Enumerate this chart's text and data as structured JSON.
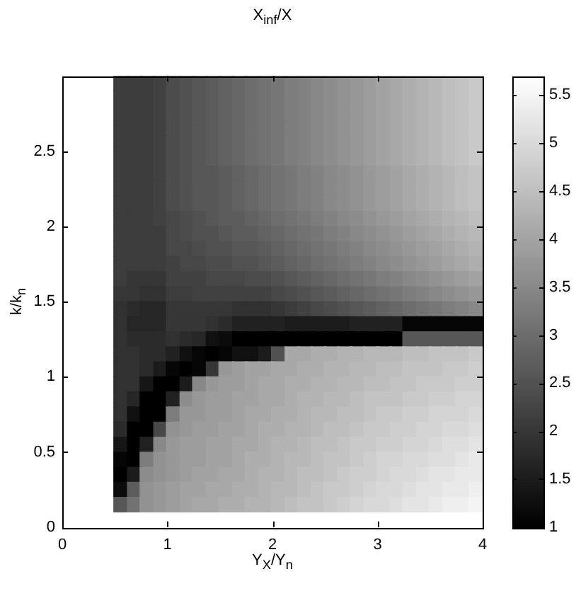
{
  "chart_data": {
    "type": "scatter",
    "title": "X$_{inf}$/X",
    "xlabel": "Y$_{X}$/Y$_{n}$",
    "ylabel": "k/k$_{n}$",
    "marker": "square",
    "xlim": [
      0,
      4
    ],
    "xticks": [
      0,
      1,
      2,
      3,
      4
    ],
    "ylim": [
      0,
      3
    ],
    "yticks": [
      0,
      0.5,
      1,
      1.5,
      2,
      2.5
    ],
    "clim": [
      1,
      5.7
    ],
    "cticks": [
      1,
      1.5,
      2,
      2.5,
      3,
      3.5,
      4,
      4.5,
      5,
      5.5
    ],
    "x": [
      0.56,
      0.69,
      0.81,
      0.94,
      1.06,
      1.19,
      1.31,
      1.44,
      1.56,
      1.69,
      1.81,
      1.94,
      2.06,
      2.19,
      2.31,
      2.44,
      2.56,
      2.69,
      2.81,
      2.94,
      3.06,
      3.19,
      3.31,
      3.44,
      3.56,
      3.69,
      3.81,
      3.94,
      0.56,
      0.69,
      0.81,
      0.94,
      1.06,
      1.19,
      1.31,
      1.44,
      1.56,
      1.69,
      1.81,
      1.94,
      2.06,
      2.19,
      2.31,
      2.44,
      2.56,
      2.69,
      2.81,
      2.94,
      3.06,
      3.19,
      3.31,
      3.44,
      3.56,
      3.69,
      3.81,
      3.94,
      0.56,
      0.69,
      0.81,
      0.94,
      1.06,
      1.19,
      1.31,
      1.44,
      1.56,
      1.69,
      1.81,
      1.94,
      2.06,
      2.19,
      2.31,
      2.44,
      2.56,
      2.69,
      2.81,
      2.94,
      3.06,
      3.19,
      3.31,
      3.44,
      3.56,
      3.69,
      3.81,
      3.94,
      0.56,
      0.69,
      0.81,
      0.94,
      1.06,
      1.19,
      1.31,
      1.44,
      1.56,
      1.69,
      1.81,
      1.94,
      2.06,
      2.19,
      2.31,
      2.44,
      2.56,
      2.69,
      2.81,
      2.94,
      3.06,
      3.19,
      3.31,
      3.44,
      3.56,
      3.69,
      3.81,
      3.94,
      0.56,
      0.69,
      0.81,
      0.94,
      1.06,
      1.19,
      1.31,
      1.44,
      1.56,
      1.69,
      1.81,
      1.94,
      2.06,
      2.19,
      2.31,
      2.44,
      2.56,
      2.69,
      2.81,
      2.94,
      3.06,
      3.19,
      3.31,
      3.44,
      3.56,
      3.69,
      3.81,
      3.94,
      0.56,
      0.69,
      0.81,
      0.94,
      1.06,
      1.19,
      1.31,
      1.44,
      1.56,
      1.69,
      1.81,
      1.94,
      2.06,
      2.19,
      2.31,
      2.44,
      2.56,
      2.69,
      2.81,
      2.94,
      3.06,
      3.19,
      3.31,
      3.44,
      3.56,
      3.69,
      3.81,
      3.94,
      0.56,
      0.69,
      0.81,
      0.94,
      1.06,
      1.19,
      1.31,
      1.44,
      1.56,
      1.69,
      1.81,
      1.94,
      2.06,
      2.19,
      2.31,
      2.44,
      2.56,
      2.69,
      2.81,
      2.94,
      3.06,
      3.19,
      3.31,
      3.44,
      3.56,
      3.69,
      3.81,
      3.94,
      0.56,
      0.69,
      0.81,
      0.94,
      1.06,
      1.19,
      1.31,
      1.44,
      1.56,
      1.69,
      1.81,
      1.94,
      2.06,
      2.19,
      2.31,
      2.44,
      2.56,
      2.69,
      2.81,
      2.94,
      3.06,
      3.19,
      3.31,
      3.44,
      3.56,
      3.69,
      3.81,
      3.94,
      0.56,
      0.69,
      0.81,
      0.94,
      1.06,
      1.19,
      1.31,
      1.44,
      1.56,
      1.69,
      1.81,
      1.94,
      2.06,
      2.19,
      2.31,
      2.44,
      2.56,
      2.69,
      2.81,
      2.94,
      3.06,
      3.19,
      3.31,
      3.44,
      3.56,
      3.69,
      3.81,
      3.94,
      0.56,
      0.69,
      0.81,
      0.94,
      1.06,
      1.19,
      1.31,
      1.44,
      1.56,
      1.69,
      1.81,
      1.94,
      2.06,
      2.19,
      2.31,
      2.44,
      2.56,
      2.69,
      2.81,
      2.94,
      3.06,
      3.19,
      3.31,
      3.44,
      3.56,
      3.69,
      3.81,
      3.94,
      0.56,
      0.69,
      0.81,
      0.94,
      1.06,
      1.19,
      1.31,
      1.44,
      1.56,
      1.69,
      1.81,
      1.94,
      2.06,
      2.19,
      2.31,
      2.44,
      2.56,
      2.69,
      2.81,
      2.94,
      3.06,
      3.19,
      3.31,
      3.44,
      3.56,
      3.69,
      3.81,
      3.94,
      0.56,
      0.69,
      0.81,
      0.94,
      1.06,
      1.19,
      1.31,
      1.44,
      1.56,
      1.69,
      1.81,
      1.94,
      2.06,
      2.19,
      2.31,
      2.44,
      2.56,
      2.69,
      2.81,
      2.94,
      3.06,
      3.19,
      3.31,
      3.44,
      3.56,
      3.69,
      3.81,
      3.94,
      0.56,
      0.69,
      0.81,
      0.94,
      1.06,
      1.19,
      1.31,
      1.44,
      1.56,
      1.69,
      1.81,
      1.94,
      2.06,
      2.19,
      2.31,
      2.44,
      2.56,
      2.69,
      2.81,
      2.94,
      3.06,
      3.19,
      3.31,
      3.44,
      3.56,
      3.69,
      3.81,
      3.94,
      0.56,
      0.69,
      0.81,
      0.94,
      1.06,
      1.19,
      1.31,
      1.44,
      1.56,
      1.69,
      1.81,
      1.94,
      2.06,
      2.19,
      2.31,
      2.44,
      2.56,
      2.69,
      2.81,
      2.94,
      3.06,
      3.19,
      3.31,
      3.44,
      3.56,
      3.69,
      3.81,
      3.94,
      0.56,
      0.69,
      0.81,
      0.94,
      1.06,
      1.19,
      1.31,
      1.44,
      1.56,
      1.69,
      1.81,
      1.94,
      2.06,
      2.19,
      2.31,
      2.44,
      2.56,
      2.69,
      2.81,
      2.94,
      3.06,
      3.19,
      3.31,
      3.44,
      3.56,
      3.69,
      3.81,
      3.94,
      0.56,
      0.69,
      0.81,
      0.94,
      1.06,
      1.19,
      1.31,
      1.44,
      1.56,
      1.69,
      1.81,
      1.94,
      2.06,
      2.19,
      2.31,
      2.44,
      2.56,
      2.69,
      2.81,
      2.94,
      3.06,
      3.19,
      3.31,
      3.44,
      3.56,
      3.69,
      3.81,
      3.94,
      0.56,
      0.69,
      0.81,
      0.94,
      1.06,
      1.19,
      1.31,
      1.44,
      1.56,
      1.69,
      1.81,
      1.94,
      2.06,
      2.19,
      2.31,
      2.44,
      2.56,
      2.69,
      2.81,
      2.94,
      3.06,
      3.19,
      3.31,
      3.44,
      3.56,
      3.69,
      3.81,
      3.94,
      0.56,
      0.69,
      0.81,
      0.94,
      1.06,
      1.19,
      1.31,
      1.44,
      1.56,
      1.69,
      1.81,
      1.94,
      2.06,
      2.19,
      2.31,
      2.44,
      2.56,
      2.69,
      2.81,
      2.94,
      3.06,
      3.19,
      3.31,
      3.44,
      3.56,
      3.69,
      3.81,
      3.94,
      0.56,
      0.69,
      0.81,
      0.94,
      1.06,
      1.19,
      1.31,
      1.44,
      1.56,
      1.69,
      1.81,
      1.94,
      2.06,
      2.19,
      2.31,
      2.44,
      2.56,
      2.69,
      2.81,
      2.94,
      3.06,
      3.19,
      3.31,
      3.44,
      3.56,
      3.69,
      3.81,
      3.94,
      0.56,
      0.69,
      0.81,
      0.94,
      1.06,
      1.19,
      1.31,
      1.44,
      1.56,
      1.69,
      1.81,
      1.94,
      2.06,
      2.19,
      2.31,
      2.44,
      2.56,
      2.69,
      2.81,
      2.94,
      3.06,
      3.19,
      3.31,
      3.44,
      3.56,
      3.69,
      3.81,
      3.94,
      0.56,
      0.69,
      0.81,
      0.94,
      1.06,
      1.19,
      1.31,
      1.44,
      1.56,
      1.69,
      1.81,
      1.94,
      2.06,
      2.19,
      2.31,
      2.44,
      2.56,
      2.69,
      2.81,
      2.94,
      3.06,
      3.19,
      3.31,
      3.44,
      3.56,
      3.69,
      3.81,
      3.94,
      0.56,
      0.69,
      0.81,
      0.94,
      1.06,
      1.19,
      1.31,
      1.44,
      1.56,
      1.69,
      1.81,
      1.94,
      2.06,
      2.19,
      2.31,
      2.44,
      2.56,
      2.69,
      2.81,
      2.94,
      3.06,
      3.19,
      3.31,
      3.44,
      3.56,
      3.69,
      3.81,
      3.94,
      0.56,
      0.69,
      0.81,
      0.94,
      1.06,
      1.19,
      1.31,
      1.44,
      1.56,
      1.69,
      1.81,
      1.94,
      2.06,
      2.19,
      2.31,
      2.44,
      2.56,
      2.69,
      2.81,
      2.94,
      3.06,
      3.19,
      3.31,
      3.44,
      3.56,
      3.69,
      3.81,
      3.94,
      0.56,
      0.69,
      0.81,
      0.94,
      1.06,
      1.19,
      1.31,
      1.44,
      1.56,
      1.69,
      1.81,
      1.94,
      2.06,
      2.19,
      2.31,
      2.44,
      2.56,
      2.69,
      2.81,
      2.94,
      3.06,
      3.19,
      3.31,
      3.44,
      3.56,
      3.69,
      3.81,
      3.94,
      0.56,
      0.69,
      0.81,
      0.94,
      1.06,
      1.19,
      1.31,
      1.44,
      1.56,
      1.69,
      1.81,
      1.94,
      2.06,
      2.19,
      2.31,
      2.44,
      2.56,
      2.69,
      2.81,
      2.94,
      3.06,
      3.19,
      3.31,
      3.44,
      3.56,
      3.69,
      3.81,
      3.94,
      0.56,
      0.69,
      0.81,
      0.94,
      1.06,
      1.19,
      1.31,
      1.44,
      1.56,
      1.69,
      1.81,
      1.94,
      2.06,
      2.19,
      2.31,
      2.44,
      2.56,
      2.69,
      2.81,
      2.94,
      3.06,
      3.19,
      3.31,
      3.44,
      3.56,
      3.69,
      3.81,
      3.94,
      0.56,
      0.69,
      0.81,
      0.94,
      1.06,
      1.19,
      1.31,
      1.44,
      1.56,
      1.69,
      1.81,
      1.94,
      2.06,
      2.19,
      2.31,
      2.44,
      2.56,
      2.69,
      2.81,
      2.94,
      3.06,
      3.19,
      3.31,
      3.44,
      3.56,
      3.69,
      3.81,
      3.94,
      0.56,
      0.69,
      0.81,
      0.94,
      1.06,
      1.19,
      1.31,
      1.44,
      1.56,
      1.69,
      1.81,
      1.94,
      2.06,
      2.19,
      2.31,
      2.44,
      2.56,
      2.69,
      2.81,
      2.94,
      3.06,
      3.19,
      3.31,
      3.44,
      3.56,
      3.69,
      3.81,
      3.94,
      0.56,
      0.69,
      0.81,
      0.94,
      1.06,
      1.19,
      1.31,
      1.44,
      1.56,
      1.69,
      1.81,
      1.94,
      2.06,
      2.19,
      2.31,
      2.44,
      2.56,
      2.69,
      2.81,
      2.94,
      3.06,
      3.19,
      3.31,
      3.44,
      3.56,
      3.69,
      3.81,
      3.94
    ],
    "values": [
      2.95,
      2.95,
      2.95,
      2.95,
      2.95,
      2.95,
      2.95,
      2.95,
      2.95,
      2.95,
      2.95,
      2.95,
      2.95,
      2.95,
      2.95,
      2.95,
      2.95,
      2.95,
      2.95,
      2.95,
      2.95,
      2.95,
      2.95,
      2.95,
      2.95,
      2.95,
      2.95,
      2.95,
      2.85,
      2.85,
      2.85,
      2.85,
      2.85,
      2.85,
      2.85,
      2.85,
      2.85,
      2.85,
      2.85,
      2.85,
      2.85,
      2.85,
      2.85,
      2.85,
      2.85,
      2.85,
      2.85,
      2.85,
      2.85,
      2.85,
      2.85,
      2.85,
      2.85,
      2.85,
      2.85,
      2.85,
      2.75,
      2.75,
      2.75,
      2.75,
      2.75,
      2.75,
      2.75,
      2.75,
      2.75,
      2.75,
      2.75,
      2.75,
      2.75,
      2.75,
      2.75,
      2.75,
      2.75,
      2.75,
      2.75,
      2.75,
      2.75,
      2.75,
      2.75,
      2.75,
      2.75,
      2.75,
      2.75,
      2.75,
      2.65,
      2.65,
      2.65,
      2.65,
      2.65,
      2.65,
      2.65,
      2.65,
      2.65,
      2.65,
      2.65,
      2.65,
      2.65,
      2.65,
      2.65,
      2.65,
      2.65,
      2.65,
      2.65,
      2.65,
      2.65,
      2.65,
      2.65,
      2.65,
      2.65,
      2.65,
      2.65,
      2.65,
      2.55,
      2.55,
      2.55,
      2.55,
      2.55,
      2.55,
      2.55,
      2.55,
      2.55,
      2.55,
      2.55,
      2.55,
      2.55,
      2.55,
      2.55,
      2.55,
      2.55,
      2.55,
      2.55,
      2.55,
      2.55,
      2.55,
      2.55,
      2.55,
      2.55,
      2.55,
      2.55,
      2.55,
      2.45,
      2.45,
      2.45,
      2.45,
      2.45,
      2.45,
      2.45,
      2.45,
      2.45,
      2.45,
      2.45,
      2.45,
      2.45,
      2.45,
      2.45,
      2.45,
      2.45,
      2.45,
      2.45,
      2.45,
      2.45,
      2.45,
      2.45,
      2.45,
      2.45,
      2.45,
      2.45,
      2.45,
      2.35,
      2.35,
      2.35,
      2.35,
      2.35,
      2.35,
      2.35,
      2.35,
      2.35,
      2.35,
      2.35,
      2.35,
      2.35,
      2.35,
      2.35,
      2.35,
      2.35,
      2.35,
      2.35,
      2.35,
      2.35,
      2.35,
      2.35,
      2.35,
      2.35,
      2.35,
      2.35,
      2.35,
      2.25,
      2.25,
      2.25,
      2.25,
      2.25,
      2.25,
      2.25,
      2.25,
      2.25,
      2.25,
      2.25,
      2.25,
      2.25,
      2.25,
      2.25,
      2.25,
      2.25,
      2.25,
      2.25,
      2.25,
      2.25,
      2.25,
      2.25,
      2.25,
      2.25,
      2.25,
      2.25,
      2.25,
      2.15,
      2.15,
      2.15,
      2.15,
      2.15,
      2.15,
      2.15,
      2.15,
      2.15,
      2.15,
      2.15,
      2.15,
      2.15,
      2.15,
      2.15,
      2.15,
      2.15,
      2.15,
      2.15,
      2.15,
      2.15,
      2.15,
      2.15,
      2.15,
      2.15,
      2.15,
      2.15,
      2.15,
      2.05,
      2.05,
      2.05,
      2.05,
      2.05,
      2.05,
      2.05,
      2.05,
      2.05,
      2.05,
      2.05,
      2.05,
      2.05,
      2.05,
      2.05,
      2.05,
      2.05,
      2.05,
      2.05,
      2.05,
      2.05,
      2.05,
      2.05,
      2.05,
      2.05,
      2.05,
      2.05,
      2.05,
      1.95,
      1.95,
      1.95,
      1.95,
      1.95,
      1.95,
      1.95,
      1.95,
      1.95,
      1.95,
      1.95,
      1.95,
      1.95,
      1.95,
      1.95,
      1.95,
      1.95,
      1.95,
      1.95,
      1.95,
      1.95,
      1.95,
      1.95,
      1.95,
      1.95,
      1.95,
      1.95,
      1.95,
      1.85,
      1.85,
      1.85,
      1.85,
      1.85,
      1.85,
      1.85,
      1.85,
      1.85,
      1.85,
      1.85,
      1.85,
      1.85,
      1.85,
      1.85,
      1.85,
      1.85,
      1.85,
      1.85,
      1.85,
      1.85,
      1.85,
      1.85,
      1.85,
      1.85,
      1.85,
      1.85,
      1.85,
      1.75,
      1.75,
      1.75,
      1.75,
      1.75,
      1.75,
      1.75,
      1.75,
      1.75,
      1.75,
      1.75,
      1.75,
      1.75,
      1.75,
      1.75,
      1.75,
      1.75,
      1.75,
      1.75,
      1.75,
      1.75,
      1.75,
      1.75,
      1.75,
      1.75,
      1.75,
      1.75,
      1.75,
      1.65,
      1.65,
      1.65,
      1.65,
      1.65,
      1.65,
      1.65,
      1.65,
      1.65,
      1.65,
      1.65,
      1.65,
      1.65,
      1.65,
      1.65,
      1.65,
      1.65,
      1.65,
      1.65,
      1.65,
      1.65,
      1.65,
      1.65,
      1.65,
      1.65,
      1.65,
      1.65,
      1.65,
      1.55,
      1.55,
      1.55,
      1.55,
      1.55,
      1.55,
      1.55,
      1.55,
      1.55,
      1.55,
      1.55,
      1.55,
      1.55,
      1.55,
      1.55,
      1.55,
      1.55,
      1.55,
      1.55,
      1.55,
      1.55,
      1.55,
      1.55,
      1.55,
      1.55,
      1.55,
      1.55,
      1.55,
      1.45,
      1.45,
      1.45,
      1.45,
      1.45,
      1.45,
      1.45,
      1.45,
      1.45,
      1.45,
      1.45,
      1.45,
      1.45,
      1.45,
      1.45,
      1.45,
      1.45,
      1.45,
      1.45,
      1.45,
      1.45,
      1.45,
      1.45,
      1.45,
      1.45,
      1.45,
      1.45,
      1.45,
      1.35,
      1.35,
      1.35,
      1.35,
      1.35,
      1.35,
      1.35,
      1.35,
      1.35,
      1.35,
      1.35,
      1.35,
      1.35,
      1.35,
      1.35,
      1.35,
      1.35,
      1.35,
      1.35,
      1.35,
      1.35,
      1.35,
      1.35,
      1.35,
      1.35,
      1.35,
      1.35,
      1.35,
      1.25,
      1.25,
      1.25,
      1.25,
      1.25,
      1.25,
      1.25,
      1.25,
      1.25,
      1.25,
      1.25,
      1.25,
      1.25,
      1.25,
      1.25,
      1.25,
      1.25,
      1.25,
      1.25,
      1.25,
      1.25,
      1.25,
      1.25,
      1.25,
      1.25,
      1.25,
      1.25,
      1.25,
      1.15,
      1.15,
      1.15,
      1.15,
      1.15,
      1.15,
      1.15,
      1.15,
      1.15,
      1.15,
      1.15,
      1.15,
      1.15,
      1.15,
      1.15,
      1.15,
      1.15,
      1.15,
      1.15,
      1.15,
      1.15,
      1.15,
      1.15,
      1.15,
      1.15,
      1.15,
      1.15,
      1.15,
      1.05,
      1.05,
      1.05,
      1.05,
      1.05,
      1.05,
      1.05,
      1.05,
      1.05,
      1.05,
      1.05,
      1.05,
      1.05,
      1.05,
      1.05,
      1.05,
      1.05,
      1.05,
      1.05,
      1.05,
      1.05,
      1.05,
      1.05,
      1.05,
      1.05,
      1.05,
      1.05,
      1.05,
      0.95,
      0.95,
      0.95,
      0.95,
      0.95,
      0.95,
      0.95,
      0.95,
      0.95,
      0.95,
      0.95,
      0.95,
      0.95,
      0.95,
      0.95,
      0.95,
      0.95,
      0.95,
      0.95,
      0.95,
      0.95,
      0.95,
      0.95,
      0.95,
      0.95,
      0.95,
      0.95,
      0.95,
      0.85,
      0.85,
      0.85,
      0.85,
      0.85,
      0.85,
      0.85,
      0.85,
      0.85,
      0.85,
      0.85,
      0.85,
      0.85,
      0.85,
      0.85,
      0.85,
      0.85,
      0.85,
      0.85,
      0.85,
      0.85,
      0.85,
      0.85,
      0.85,
      0.85,
      0.85,
      0.85,
      0.85,
      0.75,
      0.75,
      0.75,
      0.75,
      0.75,
      0.75,
      0.75,
      0.75,
      0.75,
      0.75,
      0.75,
      0.75,
      0.75,
      0.75,
      0.75,
      0.75,
      0.75,
      0.75,
      0.75,
      0.75,
      0.75,
      0.75,
      0.75,
      0.75,
      0.75,
      0.75,
      0.75,
      0.75,
      0.65,
      0.65,
      0.65,
      0.65,
      0.65,
      0.65,
      0.65,
      0.65,
      0.65,
      0.65,
      0.65,
      0.65,
      0.65,
      0.65,
      0.65,
      0.65,
      0.65,
      0.65,
      0.65,
      0.65,
      0.65,
      0.65,
      0.65,
      0.65,
      0.65,
      0.65,
      0.65,
      0.65,
      0.55,
      0.55,
      0.55,
      0.55,
      0.55,
      0.55,
      0.55,
      0.55,
      0.55,
      0.55,
      0.55,
      0.55,
      0.55,
      0.55,
      0.55,
      0.55,
      0.55,
      0.55,
      0.55,
      0.55,
      0.55,
      0.55,
      0.55,
      0.55,
      0.55,
      0.55,
      0.55,
      0.55,
      0.45,
      0.45,
      0.45,
      0.45,
      0.45,
      0.45,
      0.45,
      0.45,
      0.45,
      0.45,
      0.45,
      0.45,
      0.45,
      0.45,
      0.45,
      0.45,
      0.45,
      0.45,
      0.45,
      0.45,
      0.45,
      0.45,
      0.45,
      0.45,
      0.45,
      0.45,
      0.45,
      0.45,
      0.35,
      0.35,
      0.35,
      0.35,
      0.35,
      0.35,
      0.35,
      0.35,
      0.35,
      0.35,
      0.35,
      0.35,
      0.35,
      0.35,
      0.35,
      0.35,
      0.35,
      0.35,
      0.35,
      0.35,
      0.35,
      0.35,
      0.35,
      0.35,
      0.35,
      0.35,
      0.35,
      0.35,
      0.25,
      0.25,
      0.25,
      0.25,
      0.25,
      0.25,
      0.25,
      0.25,
      0.25,
      0.25,
      0.25,
      0.25,
      0.25,
      0.25,
      0.25,
      0.25,
      0.25,
      0.25,
      0.25,
      0.25,
      0.25,
      0.25,
      0.25,
      0.25,
      0.25,
      0.25,
      0.25,
      0.25,
      0.15,
      0.15,
      0.15,
      0.15,
      0.15,
      0.15,
      0.15,
      0.15,
      0.15,
      0.15,
      0.15,
      0.15,
      0.15,
      0.15,
      0.15,
      0.15,
      0.15,
      0.15,
      0.15,
      0.15,
      0.15,
      0.15,
      0.15,
      0.15,
      0.15,
      0.15,
      0.15,
      0.15
    ],
    "cvalues": [
      2.1,
      2.1,
      2.1,
      2.2,
      2.4,
      2.5,
      2.6,
      2.7,
      2.8,
      2.9,
      3.0,
      3.1,
      3.2,
      3.3,
      3.4,
      3.5,
      3.6,
      3.7,
      3.8,
      3.9,
      4.0,
      4.1,
      4.2,
      4.3,
      4.4,
      4.5,
      4.6,
      4.7,
      2.1,
      2.1,
      2.1,
      2.2,
      2.4,
      2.5,
      2.6,
      2.7,
      2.8,
      2.9,
      3.0,
      3.1,
      3.2,
      3.3,
      3.4,
      3.5,
      3.6,
      3.7,
      3.8,
      3.9,
      4.0,
      4.1,
      4.2,
      4.3,
      4.4,
      4.5,
      4.6,
      4.7,
      2.1,
      2.1,
      2.1,
      2.2,
      2.4,
      2.5,
      2.6,
      2.7,
      2.8,
      2.9,
      3.0,
      3.1,
      3.2,
      3.3,
      3.4,
      3.5,
      3.6,
      3.7,
      3.8,
      3.9,
      4.0,
      4.1,
      4.2,
      4.3,
      4.4,
      4.5,
      4.6,
      4.7,
      2.1,
      2.1,
      2.1,
      2.2,
      2.4,
      2.5,
      2.6,
      2.7,
      2.8,
      2.9,
      3.0,
      3.1,
      3.2,
      3.3,
      3.4,
      3.5,
      3.6,
      3.7,
      3.8,
      3.9,
      4.0,
      4.1,
      4.2,
      4.3,
      4.4,
      4.5,
      4.6,
      4.7,
      2.1,
      2.1,
      2.1,
      2.2,
      2.4,
      2.5,
      2.6,
      2.7,
      2.8,
      2.9,
      3.0,
      3.1,
      3.2,
      3.3,
      3.4,
      3.5,
      3.6,
      3.7,
      3.8,
      3.9,
      4.0,
      4.1,
      4.2,
      4.3,
      4.4,
      4.5,
      4.6,
      4.7,
      2.1,
      2.1,
      2.1,
      2.2,
      2.4,
      2.5,
      2.6,
      2.7,
      2.8,
      2.9,
      3.0,
      3.1,
      3.2,
      3.3,
      3.4,
      3.5,
      3.6,
      3.7,
      3.8,
      3.9,
      4.0,
      4.1,
      4.2,
      4.3,
      4.4,
      4.5,
      4.6,
      4.7,
      2.1,
      2.1,
      2.1,
      2.2,
      2.4,
      2.5,
      2.6,
      2.6,
      2.7,
      2.8,
      2.9,
      3.0,
      3.1,
      3.2,
      3.3,
      3.4,
      3.5,
      3.6,
      3.7,
      3.8,
      3.9,
      4.0,
      4.1,
      4.2,
      4.3,
      4.4,
      4.5,
      4.6,
      2.1,
      2.1,
      2.1,
      2.2,
      2.4,
      2.5,
      2.6,
      2.6,
      2.7,
      2.8,
      2.9,
      3.0,
      3.1,
      3.2,
      3.3,
      3.4,
      3.5,
      3.6,
      3.7,
      3.8,
      3.9,
      4.0,
      4.1,
      4.2,
      4.3,
      4.4,
      4.5,
      4.6,
      2.1,
      2.1,
      2.1,
      2.2,
      2.4,
      2.5,
      2.6,
      2.6,
      2.7,
      2.8,
      2.9,
      3.0,
      3.1,
      3.2,
      3.3,
      3.4,
      3.5,
      3.6,
      3.7,
      3.8,
      3.9,
      4.0,
      4.1,
      4.2,
      4.3,
      4.4,
      4.5,
      4.6,
      2.1,
      2.1,
      2.1,
      2.2,
      2.3,
      2.4,
      2.5,
      2.6,
      2.7,
      2.7,
      2.8,
      2.9,
      3.0,
      3.1,
      3.2,
      3.3,
      3.4,
      3.5,
      3.6,
      3.7,
      3.8,
      3.9,
      4.0,
      4.1,
      4.2,
      4.3,
      4.4,
      4.5,
      2.1,
      2.1,
      2.1,
      2.1,
      2.3,
      2.4,
      2.5,
      2.5,
      2.6,
      2.7,
      2.7,
      2.8,
      2.9,
      3.0,
      3.1,
      3.2,
      3.3,
      3.4,
      3.5,
      3.6,
      3.7,
      3.8,
      3.9,
      4.0,
      4.1,
      4.2,
      4.3,
      4.4,
      2.1,
      2.1,
      2.1,
      2.1,
      2.3,
      2.3,
      2.4,
      2.5,
      2.5,
      2.6,
      2.6,
      2.7,
      2.8,
      2.9,
      3.0,
      3.1,
      3.2,
      3.3,
      3.4,
      3.5,
      3.6,
      3.7,
      3.8,
      3.9,
      4.0,
      4.1,
      4.2,
      4.3,
      2.1,
      2.1,
      2.1,
      2.1,
      2.2,
      2.3,
      2.3,
      2.4,
      2.4,
      2.5,
      2.5,
      2.6,
      2.7,
      2.8,
      2.9,
      3.0,
      3.1,
      3.2,
      3.3,
      3.4,
      3.5,
      3.6,
      3.7,
      3.8,
      3.9,
      4.0,
      4.1,
      4.2,
      2.1,
      2.0,
      2.0,
      2.0,
      2.2,
      2.2,
      2.2,
      2.3,
      2.3,
      2.3,
      2.4,
      2.4,
      2.5,
      2.6,
      2.7,
      2.8,
      2.9,
      3.0,
      3.1,
      3.2,
      3.3,
      3.4,
      3.5,
      3.6,
      3.7,
      3.8,
      3.9,
      4.0,
      2.0,
      2.0,
      1.9,
      1.9,
      2.1,
      2.1,
      2.2,
      2.2,
      2.2,
      2.2,
      2.2,
      2.2,
      2.3,
      2.4,
      2.5,
      2.6,
      2.7,
      2.8,
      2.9,
      3.0,
      3.1,
      3.2,
      3.3,
      3.4,
      3.5,
      3.6,
      3.7,
      3.8,
      1.9,
      1.8,
      1.7,
      1.7,
      2.0,
      2.0,
      2.0,
      2.0,
      2.0,
      1.9,
      1.9,
      1.9,
      2.0,
      2.1,
      2.2,
      2.3,
      2.4,
      2.5,
      2.6,
      2.7,
      2.8,
      2.9,
      3.0,
      3.1,
      3.2,
      3.3,
      3.4,
      3.5,
      1.9,
      1.7,
      1.7,
      1.7,
      2.0,
      2.0,
      2.0,
      1.9,
      1.8,
      1.6,
      1.6,
      1.6,
      1.6,
      1.5,
      1.5,
      1.5,
      1.5,
      1.5,
      1.6,
      1.6,
      1.6,
      1.6,
      1.1,
      1.1,
      1.1,
      1.1,
      1.1,
      1.1,
      1.9,
      1.8,
      1.8,
      1.8,
      1.9,
      1.8,
      1.7,
      1.3,
      1.2,
      1.0,
      1.0,
      1.0,
      1.0,
      1.0,
      1.0,
      1.0,
      1.0,
      1.0,
      1.0,
      1.0,
      1.0,
      1.0,
      2.6,
      2.6,
      2.6,
      2.6,
      2.6,
      2.6,
      1.9,
      1.9,
      1.8,
      1.8,
      1.6,
      1.3,
      1.1,
      1.0,
      1.1,
      1.3,
      1.3,
      1.5,
      2.5,
      4.1,
      4.1,
      4.2,
      4.2,
      4.3,
      4.3,
      4.4,
      4.4,
      4.4,
      4.5,
      4.5,
      4.6,
      4.6,
      4.6,
      4.7,
      1.9,
      1.9,
      1.8,
      1.5,
      1.1,
      1.0,
      1.1,
      2.0,
      3.8,
      3.9,
      4.0,
      4.0,
      4.1,
      4.1,
      4.2,
      4.2,
      4.3,
      4.3,
      4.4,
      4.4,
      4.5,
      4.5,
      4.6,
      4.6,
      4.6,
      4.7,
      4.7,
      4.8,
      1.9,
      1.9,
      1.4,
      1.0,
      1.0,
      1.5,
      3.5,
      3.8,
      3.9,
      3.9,
      4.0,
      4.1,
      4.1,
      4.2,
      4.2,
      4.3,
      4.3,
      4.4,
      4.4,
      4.5,
      4.5,
      4.6,
      4.6,
      4.7,
      4.7,
      4.7,
      4.8,
      4.8,
      1.9,
      1.7,
      1.0,
      1.0,
      1.6,
      3.6,
      3.8,
      3.9,
      3.9,
      4.0,
      4.0,
      4.1,
      4.1,
      4.2,
      4.3,
      4.3,
      4.4,
      4.4,
      4.5,
      4.6,
      4.6,
      4.6,
      4.7,
      4.7,
      4.8,
      4.8,
      4.9,
      4.9,
      1.9,
      1.3,
      1.0,
      1.0,
      3.3,
      3.8,
      3.8,
      3.9,
      3.9,
      4.0,
      4.1,
      4.1,
      4.2,
      4.2,
      4.3,
      4.4,
      4.4,
      4.5,
      4.5,
      4.6,
      4.7,
      4.7,
      4.8,
      4.8,
      4.9,
      4.9,
      4.9,
      5.0,
      1.8,
      1.0,
      1.0,
      2.3,
      3.7,
      3.8,
      3.9,
      3.9,
      4.0,
      4.0,
      4.1,
      4.2,
      4.2,
      4.3,
      4.3,
      4.4,
      4.5,
      4.5,
      4.6,
      4.7,
      4.7,
      4.8,
      4.8,
      4.9,
      4.9,
      5.0,
      5.0,
      5.1,
      1.4,
      1.0,
      1.6,
      3.5,
      3.8,
      3.9,
      3.9,
      4.0,
      4.0,
      4.1,
      4.1,
      4.2,
      4.3,
      4.3,
      4.4,
      4.5,
      4.5,
      4.6,
      4.7,
      4.7,
      4.8,
      4.8,
      4.9,
      4.9,
      5.0,
      5.1,
      5.1,
      5.2,
      1.1,
      1.0,
      3.3,
      3.7,
      3.8,
      3.9,
      3.9,
      4.0,
      4.0,
      4.1,
      4.2,
      4.2,
      4.3,
      4.4,
      4.4,
      4.5,
      4.6,
      4.6,
      4.7,
      4.8,
      4.9,
      4.9,
      5.0,
      5.0,
      5.1,
      5.1,
      5.2,
      5.3,
      1.0,
      1.5,
      3.6,
      3.7,
      3.8,
      3.9,
      4.0,
      4.0,
      4.1,
      4.1,
      4.2,
      4.3,
      4.3,
      4.4,
      4.5,
      4.5,
      4.6,
      4.7,
      4.8,
      4.8,
      4.9,
      5.0,
      5.0,
      5.1,
      5.2,
      5.2,
      5.3,
      5.3,
      1.2,
      2.7,
      3.7,
      3.8,
      3.9,
      4.0,
      4.0,
      4.1,
      4.1,
      4.2,
      4.2,
      4.3,
      4.4,
      4.4,
      4.5,
      4.6,
      4.7,
      4.7,
      4.8,
      4.9,
      5.0,
      5.0,
      5.1,
      5.2,
      5.2,
      5.3,
      5.3,
      5.4,
      2.6,
      3.1,
      3.7,
      3.8,
      3.9,
      4.0,
      4.1,
      4.1,
      4.2,
      4.2,
      4.3,
      4.3,
      4.4,
      4.5,
      4.6,
      4.6,
      4.7,
      4.8,
      4.9,
      5.0,
      5.0,
      5.1,
      5.2,
      5.2,
      5.3,
      5.4,
      5.4,
      5.5
    ]
  }
}
